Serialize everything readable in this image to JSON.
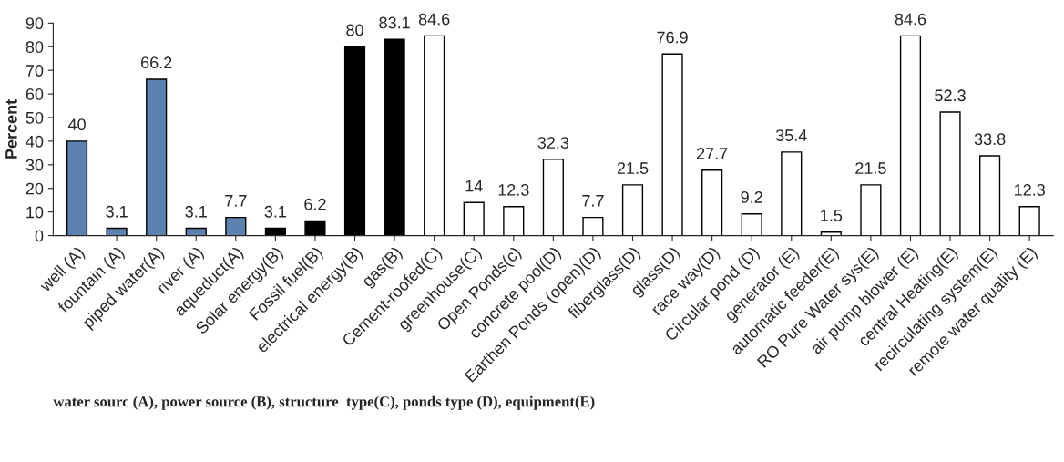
{
  "chart_data": {
    "type": "bar",
    "categories": [
      "well (A)",
      "fountain (A)",
      "piped water(A)",
      "river (A)",
      "aqueduct(A)",
      "Solar energy(B)",
      "Fossil fuel(B)",
      "electrical energy(B)",
      "gas(B)",
      "Cement-roofed(C)",
      "greenhouse(C)",
      "Open Ponds(c)",
      "concrete pool(D)",
      "Earthen Ponds (open)(D)",
      "fiberglass(D)",
      "glass(D)",
      "race way(D)",
      "Circular pond (D)",
      "generator (E)",
      "automatic feeder(E)",
      "RO Pure Water sys(E)",
      "air pump blower (E)",
      "central Heating(E)",
      "recirculating system(E)",
      "remote water quality (E)"
    ],
    "values": [
      40,
      3.1,
      66.2,
      3.1,
      7.7,
      3.1,
      6.2,
      80,
      83.1,
      84.6,
      14,
      12.3,
      32.3,
      7.7,
      21.5,
      76.9,
      27.7,
      9.2,
      35.4,
      1.5,
      21.5,
      84.6,
      52.3,
      33.8,
      12.3
    ],
    "colors": [
      "#4f81bd",
      "#4f81bd",
      "#4f81bd",
      "#4f81bd",
      "#4f81bd",
      "#000000",
      "#000000",
      "#000000",
      "#000000",
      "#ffffff",
      "#ffffff",
      "#ffffff",
      "#ffffff",
      "#ffffff",
      "#ffffff",
      "#ffffff",
      "#ffffff",
      "#ffffff",
      "#ffffff",
      "#ffffff",
      "#ffffff",
      "#ffffff",
      "#ffffff",
      "#ffffff",
      "#ffffff"
    ],
    "ylabel": "Percent",
    "xlabel": "water sourc (A), power source (B), structure  type(C), ponds type (D), equipment(E)",
    "ylim": [
      0,
      90
    ],
    "yticks": [
      0,
      10,
      20,
      30,
      40,
      50,
      60,
      70,
      80,
      90
    ],
    "data_labels": true,
    "grid": false,
    "legend": false
  }
}
